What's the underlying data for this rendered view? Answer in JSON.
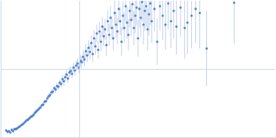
{
  "chart_data": {
    "type": "scatter",
    "color": "#3b6fc9",
    "grid": true,
    "tick_labels": false,
    "xlim": [
      0,
      400
    ],
    "ylim": [
      0,
      200
    ],
    "xticks": [
      115
    ],
    "yticks": [
      100
    ],
    "x": [
      8,
      10,
      12,
      14,
      16,
      18,
      20,
      22,
      24,
      26,
      28,
      30,
      32,
      34,
      36,
      38,
      40,
      42,
      44,
      46,
      48,
      50,
      52,
      54,
      56,
      58,
      60,
      62,
      64,
      66,
      68,
      70,
      72,
      74,
      76,
      78,
      80,
      82,
      84,
      86,
      88,
      90,
      92,
      94,
      96,
      98,
      100,
      102,
      104,
      106,
      108,
      110,
      112,
      114,
      116,
      118,
      120,
      122,
      124,
      126,
      128,
      130,
      132,
      134,
      136,
      138,
      140,
      142,
      144,
      146,
      148,
      150,
      152,
      154,
      156,
      158,
      160,
      162,
      164,
      166,
      168,
      170,
      172,
      174,
      176,
      178,
      180,
      182,
      184,
      186,
      188,
      190,
      192,
      194,
      196,
      198,
      200,
      202,
      204,
      206,
      208,
      210,
      212,
      214,
      216,
      218,
      220,
      224,
      228,
      232,
      236,
      240,
      244,
      248,
      252,
      256,
      262,
      268,
      272,
      278,
      284,
      290,
      300,
      340
    ],
    "values": [
      10,
      8,
      9,
      7,
      11,
      9,
      12,
      12,
      13,
      15,
      16,
      18,
      19,
      21,
      23,
      25,
      26,
      28,
      30,
      31,
      33,
      36,
      38,
      40,
      42,
      44,
      47,
      48,
      52,
      53,
      57,
      60,
      62,
      66,
      67,
      72,
      70,
      75,
      74,
      80,
      78,
      85,
      82,
      88,
      92,
      86,
      95,
      97,
      93,
      102,
      98,
      105,
      108,
      102,
      112,
      110,
      118,
      114,
      126,
      120,
      131,
      125,
      138,
      122,
      145,
      133,
      152,
      128,
      155,
      140,
      162,
      148,
      158,
      135,
      170,
      150,
      175,
      160,
      145,
      182,
      165,
      155,
      188,
      170,
      140,
      178,
      160,
      192,
      168,
      150,
      185,
      172,
      195,
      160,
      178,
      190,
      145,
      188,
      175,
      198,
      165,
      185,
      192,
      158,
      180,
      196,
      170,
      188,
      140,
      192,
      178,
      165,
      196,
      170,
      185,
      162,
      190,
      160,
      168,
      178,
      188,
      182,
      130,
      197
    ],
    "errors": [
      2,
      2,
      2,
      2,
      2,
      2,
      2,
      2,
      2,
      2,
      2,
      2,
      2,
      2,
      2,
      2,
      3,
      3,
      3,
      3,
      3,
      3,
      3,
      3,
      3,
      3,
      3,
      3,
      3,
      3,
      4,
      4,
      4,
      4,
      4,
      4,
      5,
      5,
      5,
      5,
      5,
      6,
      6,
      6,
      6,
      6,
      7,
      7,
      7,
      7,
      8,
      8,
      8,
      8,
      9,
      9,
      9,
      10,
      10,
      10,
      11,
      11,
      11,
      12,
      12,
      12,
      13,
      13,
      14,
      14,
      14,
      15,
      15,
      16,
      16,
      16,
      17,
      17,
      18,
      18,
      19,
      19,
      20,
      20,
      21,
      21,
      22,
      22,
      23,
      23,
      24,
      24,
      25,
      25,
      26,
      26,
      27,
      27,
      28,
      28,
      29,
      29,
      30,
      31,
      31,
      32,
      32,
      33,
      34,
      35,
      36,
      37,
      38,
      39,
      40,
      41,
      43,
      45,
      46,
      48,
      50,
      52,
      55,
      60
    ]
  }
}
